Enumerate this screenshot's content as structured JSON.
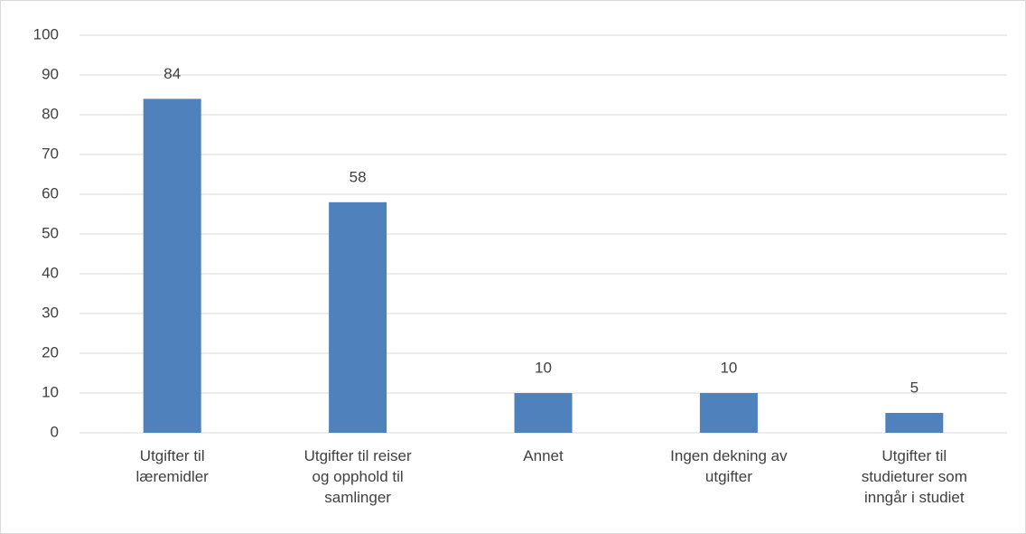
{
  "chart_data": {
    "type": "bar",
    "categories": [
      "Utgifter til læremidler",
      "Utgifter til reiser og opphold til samlinger",
      "Annet",
      "Ingen dekning av utgifter",
      "Utgifter til studieturer som inngår i studiet"
    ],
    "values": [
      84,
      58,
      10,
      10,
      5
    ],
    "color": "#4f81bd",
    "ylim": [
      0,
      100
    ],
    "yticks": [
      0,
      10,
      20,
      30,
      40,
      50,
      60,
      70,
      80,
      90,
      100
    ],
    "grid": true
  }
}
